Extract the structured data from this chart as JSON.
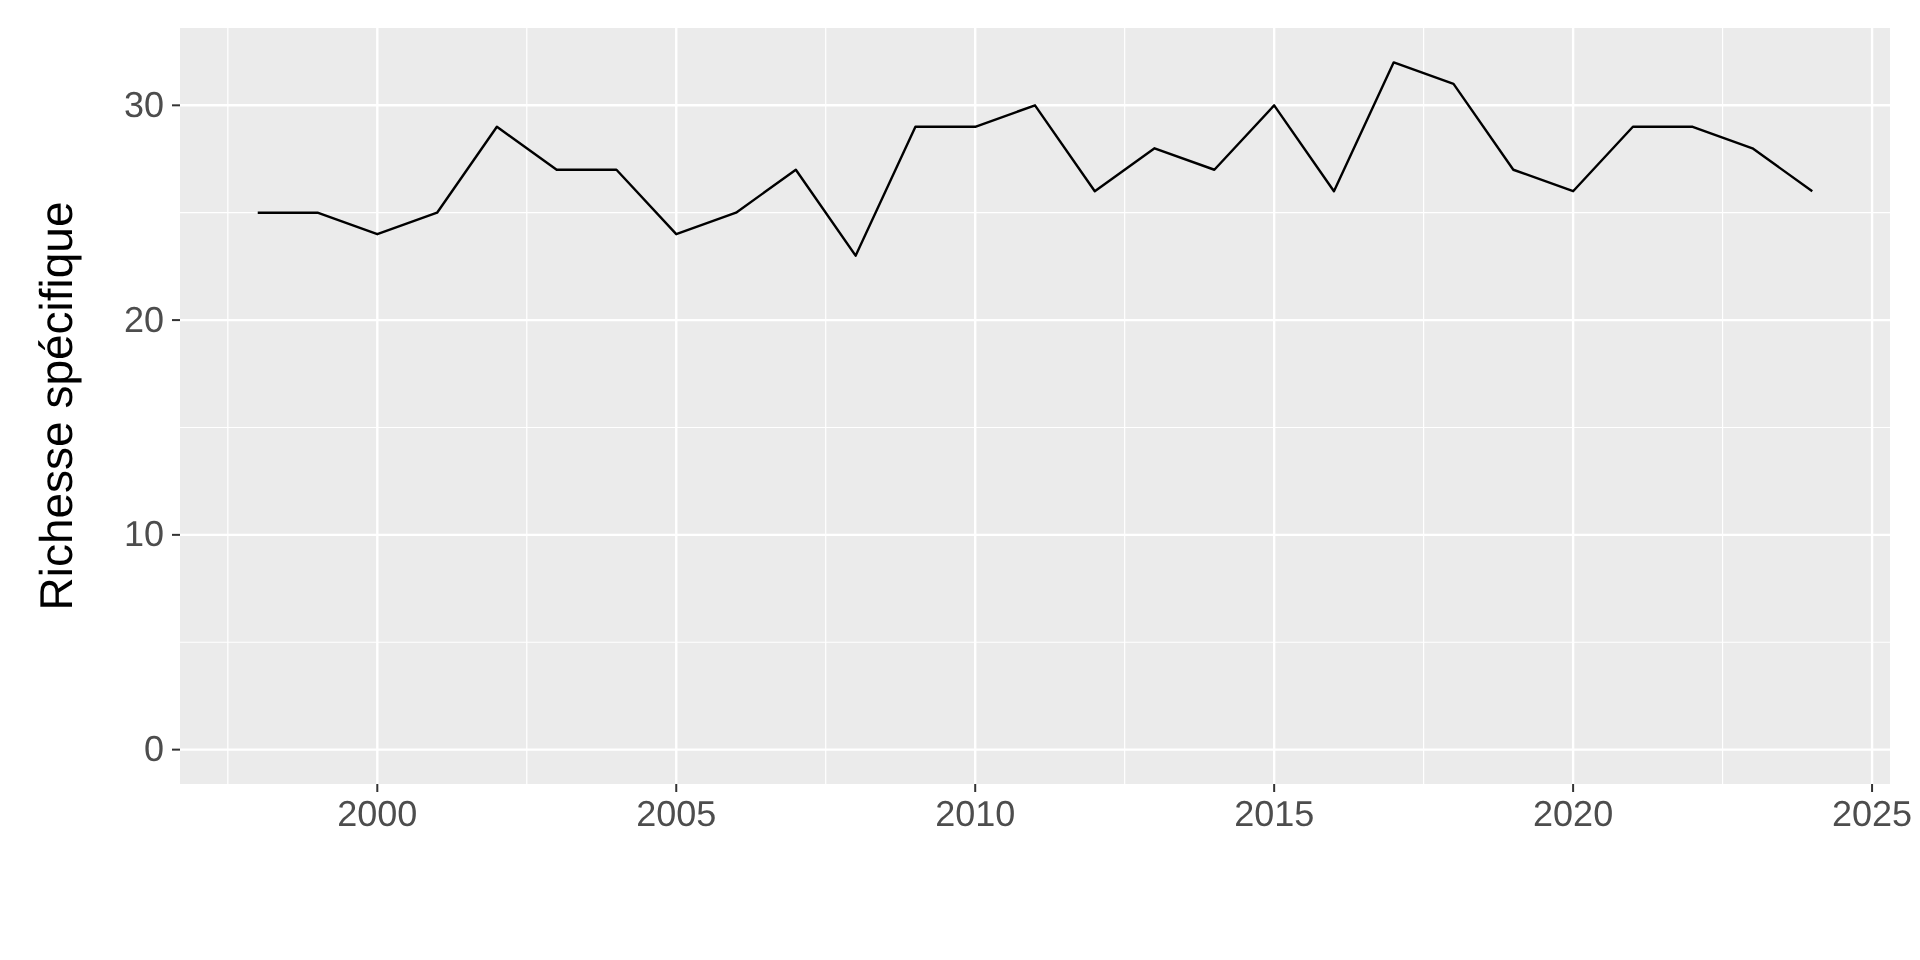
{
  "chart_data": {
    "type": "line",
    "ylabel": "Richesse spécifique",
    "x": [
      1998,
      1999,
      2000,
      2001,
      2002,
      2003,
      2004,
      2005,
      2006,
      2007,
      2008,
      2009,
      2010,
      2011,
      2012,
      2013,
      2014,
      2015,
      2016,
      2017,
      2018,
      2019,
      2020,
      2021,
      2022,
      2023,
      2024
    ],
    "series": [
      {
        "color": "#000000",
        "values": [
          25,
          25,
          24,
          25,
          29,
          27,
          27,
          24,
          25,
          27,
          23,
          29,
          29,
          30,
          26,
          28,
          27,
          30,
          26,
          32,
          31,
          27,
          26,
          29,
          29,
          28,
          26
        ]
      }
    ],
    "xlim": [
      1996.7,
      2025.3
    ],
    "xticks": [
      2000,
      2005,
      2010,
      2015,
      2020,
      2025
    ],
    "ylim": [
      -1.6,
      33.6
    ],
    "yticks": [
      0,
      10,
      20,
      30
    ],
    "grid": true,
    "marker": "none",
    "line_style": "solid"
  }
}
